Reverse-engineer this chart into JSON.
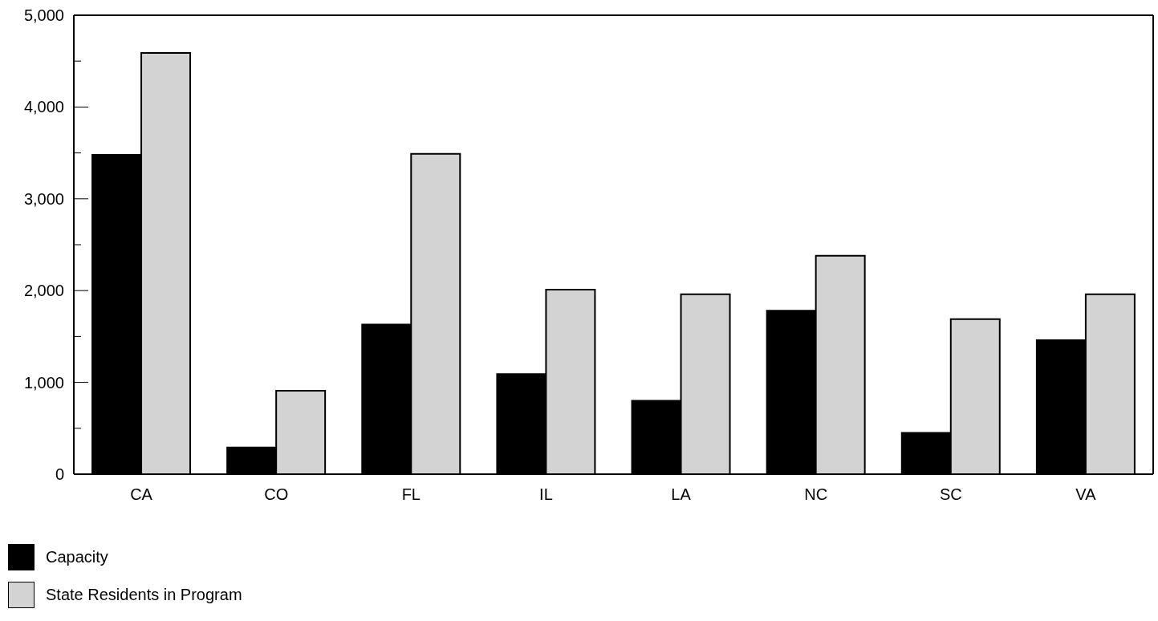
{
  "chart_data": {
    "type": "bar",
    "categories": [
      "CA",
      "CO",
      "FL",
      "IL",
      "LA",
      "NC",
      "SC",
      "VA"
    ],
    "series": [
      {
        "name": "Capacity",
        "color": "#000000",
        "values": [
          3480,
          290,
          1630,
          1090,
          800,
          1780,
          450,
          1460
        ]
      },
      {
        "name": "State Residents in Program",
        "color": "#d3d3d3",
        "values": [
          4590,
          910,
          3490,
          2010,
          1960,
          2380,
          1690,
          1960
        ]
      }
    ],
    "ylim": [
      0,
      5000
    ],
    "yticks": [
      0,
      {
        "value": 500,
        "label": null
      },
      {
        "value": 1000,
        "label": "1,000"
      },
      {
        "value": 1500,
        "label": null
      },
      {
        "value": 2000,
        "label": "2,000"
      },
      {
        "value": 2500,
        "label": null
      },
      {
        "value": 3000,
        "label": "3,000"
      },
      {
        "value": 3500,
        "label": null
      },
      {
        "value": 4000,
        "label": "4,000"
      },
      {
        "value": 4500,
        "label": null
      },
      {
        "value": 5000,
        "label": "5,000"
      }
    ],
    "grid": false,
    "legend": "bottom left"
  }
}
